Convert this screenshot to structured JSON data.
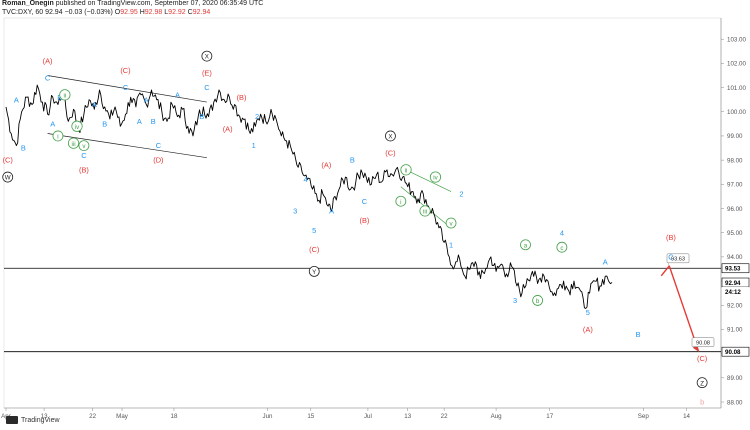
{
  "header": {
    "author": "Roman_Onegin",
    "published_text": "published on TradingView.com, September 07, 2020 06:35:49 UTC",
    "symbol": "TVC:DXY, 60",
    "last": "92.94",
    "change": "−0.03 (−0.03%)",
    "ohlc_o_label": "O",
    "ohlc_o": "92.95",
    "ohlc_h_label": "H",
    "ohlc_h": "92.98",
    "ohlc_l_label": "L",
    "ohlc_l": "92.92",
    "ohlc_c_label": "C",
    "ohlc_c": "92.94"
  },
  "footer": {
    "brand": "TradingView"
  },
  "colors": {
    "candle": "#000000",
    "wave_red": "#e53935",
    "wave_blue": "#2196f3",
    "wave_green": "#43a047",
    "wave_black": "#222222",
    "projection": "#e53935",
    "level_line": "#000000",
    "faded": "#f3a3a3"
  },
  "chart_data": {
    "type": "line",
    "ylim": [
      88,
      104
    ],
    "x_labels": [
      "Apr",
      "13",
      "22",
      "May",
      "18",
      "Jun",
      "15",
      "Jul",
      "13",
      "22",
      "Aug",
      "17",
      "Sep",
      "14"
    ],
    "y_ticks": [
      "103.00",
      "102.00",
      "101.00",
      "100.00",
      "99.00",
      "98.00",
      "97.00",
      "96.00",
      "95.00",
      "94.00",
      "93.00",
      "92.00",
      "91.00",
      "90.00",
      "89.00",
      "88.00"
    ],
    "price_labels": {
      "level_high": "93.53",
      "last": "92.94",
      "countdown": "24:12",
      "level_low": "90.08"
    },
    "callouts": {
      "upper": "93.63",
      "lower": "90.08"
    },
    "levels": [
      93.53,
      90.08
    ],
    "price_path": [
      [
        0,
        100.2
      ],
      [
        3,
        99.1
      ],
      [
        6,
        98.6
      ],
      [
        9,
        100.0
      ],
      [
        12,
        100.6
      ],
      [
        15,
        100.3
      ],
      [
        18,
        101.1
      ],
      [
        21,
        100.4
      ],
      [
        24,
        99.9
      ],
      [
        27,
        100.6
      ],
      [
        30,
        100.3
      ],
      [
        33,
        100.9
      ],
      [
        36,
        99.6
      ],
      [
        39,
        100.1
      ],
      [
        42,
        99.2
      ],
      [
        45,
        99.9
      ],
      [
        48,
        100.5
      ],
      [
        51,
        100.1
      ],
      [
        54,
        100.9
      ],
      [
        57,
        100.2
      ],
      [
        60,
        99.7
      ],
      [
        63,
        100.2
      ],
      [
        66,
        99.4
      ],
      [
        69,
        99.9
      ],
      [
        72,
        100.6
      ],
      [
        75,
        100.2
      ],
      [
        78,
        100.7
      ],
      [
        81,
        100.3
      ],
      [
        84,
        100.9
      ],
      [
        87,
        100.5
      ],
      [
        90,
        100.0
      ],
      [
        93,
        99.6
      ],
      [
        96,
        100.3
      ],
      [
        99,
        99.8
      ],
      [
        102,
        100.1
      ],
      [
        105,
        99.4
      ],
      [
        108,
        99.0
      ],
      [
        111,
        99.8
      ],
      [
        114,
        100.2
      ],
      [
        117,
        99.8
      ],
      [
        120,
        100.4
      ],
      [
        123,
        100.9
      ],
      [
        126,
        100.5
      ],
      [
        129,
        100.6
      ],
      [
        132,
        100.3
      ],
      [
        135,
        99.8
      ],
      [
        138,
        99.7
      ],
      [
        141,
        99.1
      ],
      [
        144,
        99.4
      ],
      [
        147,
        99.9
      ],
      [
        150,
        99.6
      ],
      [
        153,
        100.1
      ],
      [
        156,
        99.7
      ],
      [
        159,
        99.0
      ],
      [
        162,
        98.8
      ],
      [
        165,
        98.4
      ],
      [
        168,
        97.8
      ],
      [
        171,
        97.5
      ],
      [
        174,
        97.2
      ],
      [
        177,
        96.8
      ],
      [
        180,
        96.3
      ],
      [
        183,
        96.6
      ],
      [
        186,
        96.1
      ],
      [
        188,
        95.9
      ],
      [
        190,
        96.5
      ],
      [
        193,
        96.9
      ],
      [
        196,
        97.3
      ],
      [
        199,
        96.8
      ],
      [
        202,
        97.1
      ],
      [
        205,
        97.6
      ],
      [
        208,
        97.3
      ],
      [
        211,
        97.0
      ],
      [
        214,
        97.4
      ],
      [
        217,
        97.1
      ],
      [
        220,
        97.6
      ],
      [
        223,
        97.4
      ],
      [
        226,
        97.7
      ],
      [
        229,
        97.3
      ],
      [
        232,
        96.9
      ],
      [
        235,
        96.7
      ],
      [
        238,
        96.4
      ],
      [
        241,
        96.6
      ],
      [
        244,
        96.1
      ],
      [
        247,
        95.8
      ],
      [
        250,
        95.2
      ],
      [
        253,
        94.6
      ],
      [
        256,
        94.0
      ],
      [
        259,
        93.6
      ],
      [
        262,
        93.9
      ],
      [
        265,
        93.2
      ],
      [
        268,
        93.5
      ],
      [
        271,
        93.8
      ],
      [
        274,
        93.1
      ],
      [
        277,
        93.5
      ],
      [
        280,
        94.0
      ],
      [
        283,
        93.4
      ],
      [
        286,
        93.7
      ],
      [
        289,
        93.3
      ],
      [
        292,
        93.6
      ],
      [
        295,
        92.8
      ],
      [
        298,
        92.5
      ],
      [
        301,
        93.1
      ],
      [
        304,
        93.4
      ],
      [
        307,
        92.9
      ],
      [
        310,
        93.3
      ],
      [
        313,
        93.0
      ],
      [
        316,
        92.4
      ],
      [
        319,
        92.7
      ],
      [
        322,
        93.0
      ],
      [
        325,
        92.6
      ],
      [
        328,
        93.0
      ],
      [
        331,
        92.7
      ],
      [
        334,
        91.9
      ],
      [
        337,
        92.5
      ],
      [
        340,
        93.0
      ],
      [
        343,
        92.8
      ],
      [
        346,
        93.2
      ],
      [
        350,
        92.94
      ]
    ],
    "labels": [
      {
        "t": "(C)",
        "x": 1,
        "y": 98.0,
        "c": "wave_red"
      },
      {
        "t": "W",
        "x": 1,
        "y": 97.3,
        "c": "wave_black",
        "circle": true
      },
      {
        "t": "A",
        "x": 6,
        "y": 100.5,
        "c": "wave_blue"
      },
      {
        "t": "B",
        "x": 10,
        "y": 98.5,
        "c": "wave_blue"
      },
      {
        "t": "(A)",
        "x": 24,
        "y": 102.1,
        "c": "wave_red"
      },
      {
        "t": "C",
        "x": 24,
        "y": 101.4,
        "c": "wave_blue"
      },
      {
        "t": "B",
        "x": 31,
        "y": 100.6,
        "c": "wave_blue"
      },
      {
        "t": "A",
        "x": 27,
        "y": 99.5,
        "c": "wave_blue"
      },
      {
        "t": "C",
        "x": 45,
        "y": 98.2,
        "c": "wave_blue"
      },
      {
        "t": "(B)",
        "x": 45,
        "y": 97.6,
        "c": "wave_red"
      },
      {
        "t": "ii",
        "x": 34,
        "y": 100.7,
        "c": "wave_green",
        "circle": true
      },
      {
        "t": "i",
        "x": 30,
        "y": 99.0,
        "c": "wave_green",
        "circle": true
      },
      {
        "t": "iv",
        "x": 41,
        "y": 99.4,
        "c": "wave_green",
        "circle": true
      },
      {
        "t": "iii",
        "x": 39,
        "y": 98.7,
        "c": "wave_green",
        "circle": true
      },
      {
        "t": "v",
        "x": 45,
        "y": 98.6,
        "c": "wave_green",
        "circle": true
      },
      {
        "t": "A",
        "x": 51,
        "y": 100.3,
        "c": "wave_blue"
      },
      {
        "t": "B",
        "x": 57,
        "y": 99.5,
        "c": "wave_blue"
      },
      {
        "t": "(C)",
        "x": 69,
        "y": 101.7,
        "c": "wave_red"
      },
      {
        "t": "C",
        "x": 69,
        "y": 101.0,
        "c": "wave_blue"
      },
      {
        "t": "A",
        "x": 77,
        "y": 99.6,
        "c": "wave_blue"
      },
      {
        "t": "A",
        "x": 81,
        "y": 100.5,
        "c": "wave_blue"
      },
      {
        "t": "B",
        "x": 85,
        "y": 99.6,
        "c": "wave_blue"
      },
      {
        "t": "C",
        "x": 88,
        "y": 98.6,
        "c": "wave_blue"
      },
      {
        "t": "(D)",
        "x": 88,
        "y": 98.0,
        "c": "wave_red"
      },
      {
        "t": "A",
        "x": 99,
        "y": 100.7,
        "c": "wave_blue"
      },
      {
        "t": "B",
        "x": 113,
        "y": 99.8,
        "c": "wave_blue"
      },
      {
        "t": "X",
        "x": 116,
        "y": 102.3,
        "c": "wave_black",
        "circle": true
      },
      {
        "t": "(E)",
        "x": 116,
        "y": 101.6,
        "c": "wave_red"
      },
      {
        "t": "C",
        "x": 116,
        "y": 101.0,
        "c": "wave_blue"
      },
      {
        "t": "(A)",
        "x": 128,
        "y": 99.3,
        "c": "wave_red"
      },
      {
        "t": "(B)",
        "x": 136,
        "y": 100.6,
        "c": "wave_red"
      },
      {
        "t": "2",
        "x": 145,
        "y": 99.8,
        "c": "wave_blue"
      },
      {
        "t": "1",
        "x": 143,
        "y": 98.6,
        "c": "wave_blue"
      },
      {
        "t": "4",
        "x": 173,
        "y": 97.2,
        "c": "wave_blue"
      },
      {
        "t": "3",
        "x": 167,
        "y": 95.9,
        "c": "wave_blue"
      },
      {
        "t": "5",
        "x": 178,
        "y": 95.1,
        "c": "wave_blue"
      },
      {
        "t": "(C)",
        "x": 178,
        "y": 94.3,
        "c": "wave_red"
      },
      {
        "t": "Y",
        "x": 178,
        "y": 93.4,
        "c": "wave_black",
        "circle": true
      },
      {
        "t": "A",
        "x": 188,
        "y": 95.9,
        "c": "wave_blue"
      },
      {
        "t": "(A)",
        "x": 185,
        "y": 97.8,
        "c": "wave_red"
      },
      {
        "t": "B",
        "x": 200,
        "y": 98.0,
        "c": "wave_blue"
      },
      {
        "t": "C",
        "x": 207,
        "y": 96.3,
        "c": "wave_blue"
      },
      {
        "t": "(B)",
        "x": 207,
        "y": 95.5,
        "c": "wave_red"
      },
      {
        "t": "X",
        "x": 222,
        "y": 99.0,
        "c": "wave_black",
        "circle": true
      },
      {
        "t": "(C)",
        "x": 222,
        "y": 98.3,
        "c": "wave_red"
      },
      {
        "t": "ii",
        "x": 231,
        "y": 97.6,
        "c": "wave_green",
        "circle": true
      },
      {
        "t": "i",
        "x": 228,
        "y": 96.3,
        "c": "wave_green",
        "circle": true
      },
      {
        "t": "iv",
        "x": 248,
        "y": 97.3,
        "c": "wave_green",
        "circle": true
      },
      {
        "t": "iii",
        "x": 242,
        "y": 95.9,
        "c": "wave_green",
        "circle": true
      },
      {
        "t": "v",
        "x": 257,
        "y": 95.4,
        "c": "wave_green",
        "circle": true
      },
      {
        "t": "2",
        "x": 263,
        "y": 96.6,
        "c": "wave_blue"
      },
      {
        "t": "1",
        "x": 257,
        "y": 94.5,
        "c": "wave_blue"
      },
      {
        "t": "a",
        "x": 300,
        "y": 94.5,
        "c": "wave_green",
        "circle": true
      },
      {
        "t": "3",
        "x": 294,
        "y": 92.2,
        "c": "wave_blue"
      },
      {
        "t": "b",
        "x": 307,
        "y": 92.2,
        "c": "wave_green",
        "circle": true
      },
      {
        "t": "4",
        "x": 321,
        "y": 95.0,
        "c": "wave_blue"
      },
      {
        "t": "c",
        "x": 321,
        "y": 94.4,
        "c": "wave_green",
        "circle": true
      },
      {
        "t": "5",
        "x": 336,
        "y": 91.7,
        "c": "wave_blue"
      },
      {
        "t": "(A)",
        "x": 336,
        "y": 91.0,
        "c": "wave_red"
      },
      {
        "t": "A",
        "x": 346,
        "y": 93.8,
        "c": "wave_blue"
      },
      {
        "t": "B",
        "x": 365,
        "y": 90.8,
        "c": "wave_blue"
      },
      {
        "t": "(B)",
        "x": 384,
        "y": 94.8,
        "c": "wave_red"
      },
      {
        "t": "C",
        "x": 384,
        "y": 94.0,
        "c": "wave_blue"
      },
      {
        "t": "(C)",
        "x": 402,
        "y": 89.8,
        "c": "wave_red"
      },
      {
        "t": "Z",
        "x": 402,
        "y": 88.8,
        "c": "wave_black",
        "circle": true
      },
      {
        "t": "b",
        "x": 402,
        "y": 88.0,
        "c": "faded"
      }
    ],
    "trendlines": [
      {
        "from": [
          24,
          101.5
        ],
        "to": [
          116,
          100.4
        ],
        "c": "wave_black"
      },
      {
        "from": [
          24,
          99.1
        ],
        "to": [
          116,
          98.1
        ],
        "c": "wave_black"
      },
      {
        "from": [
          228,
          97.7
        ],
        "to": [
          257,
          96.7
        ],
        "c": "wave_green"
      },
      {
        "from": [
          228,
          96.9
        ],
        "to": [
          257,
          95.2
        ],
        "c": "wave_green"
      }
    ],
    "projection": [
      [
        383,
        93.63
      ],
      [
        400,
        90.08
      ]
    ]
  }
}
